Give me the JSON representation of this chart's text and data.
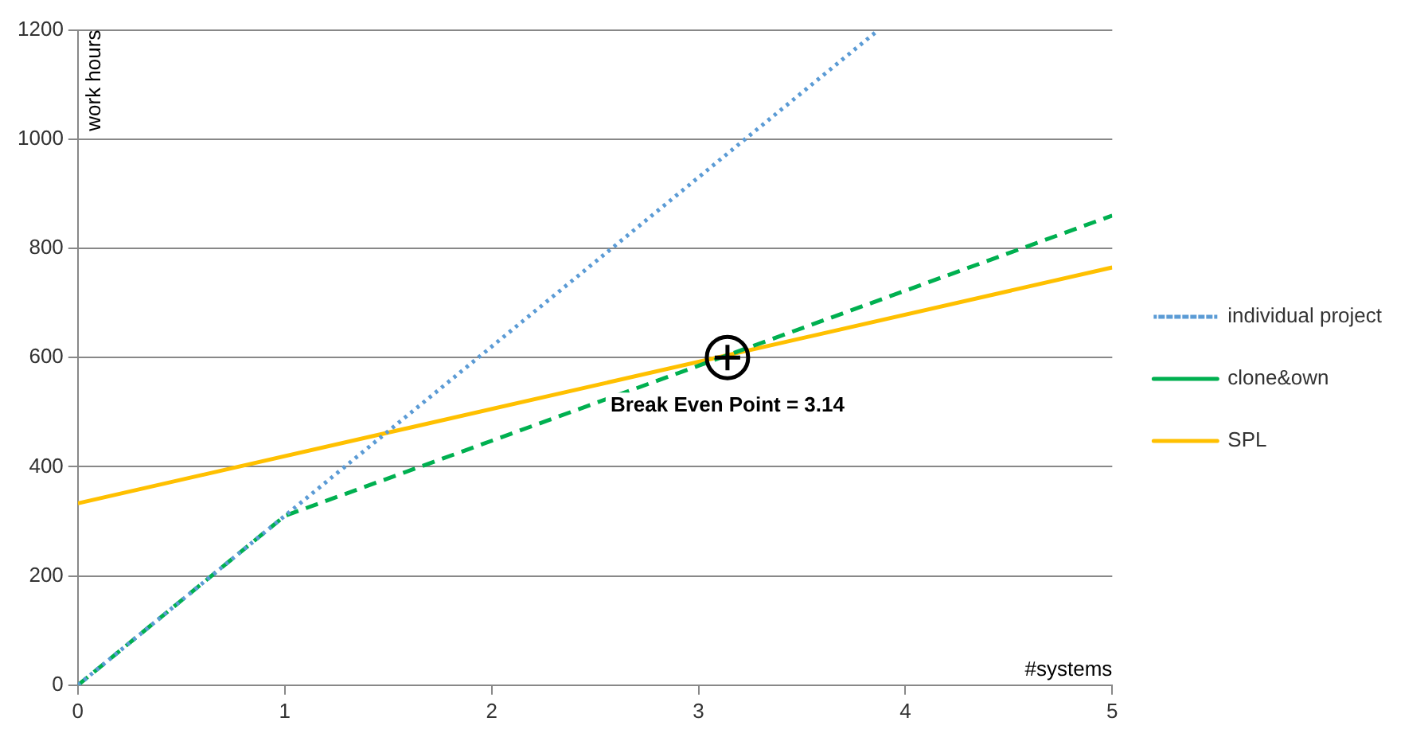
{
  "chart_data": {
    "type": "line",
    "xlabel": "#systems",
    "ylabel": "work hours",
    "xlim": [
      0,
      5
    ],
    "xticks": [
      0,
      1,
      2,
      3,
      4,
      5
    ],
    "ylim": [
      0,
      1200
    ],
    "yticks": [
      0,
      200,
      400,
      600,
      800,
      1000,
      1200
    ],
    "grid": "y",
    "legend": "right",
    "marker": "none",
    "series": [
      {
        "name": "individual project",
        "color": "#5b9bd5",
        "line_style": "dotted",
        "x": [
          0,
          1,
          2,
          3,
          3.87
        ],
        "values": [
          0,
          310,
          620,
          930,
          1200
        ]
      },
      {
        "name": "clone&own",
        "color": "#00b050",
        "line_style": "dashed",
        "x": [
          0,
          1,
          5
        ],
        "values": [
          0,
          310,
          860
        ]
      },
      {
        "name": "SPL",
        "color": "#ffc000",
        "line_style": "solid",
        "x": [
          0,
          5
        ],
        "values": [
          333,
          765
        ]
      }
    ],
    "annotations": [
      {
        "text": "Break Even Point = 3.14",
        "x": 3.14,
        "y": 600
      }
    ]
  }
}
